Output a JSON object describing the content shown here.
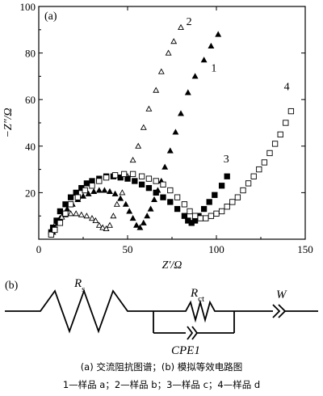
{
  "chart_data": {
    "type": "scatter",
    "panel_label": "(a)",
    "xlabel": "Z′/Ω",
    "ylabel": "−Z″/Ω",
    "xlim": [
      0,
      150
    ],
    "ylim": [
      0,
      100
    ],
    "xticks": [
      0,
      50,
      100,
      150
    ],
    "yticks": [
      20,
      40,
      60,
      80,
      100
    ],
    "grid": false,
    "series": [
      {
        "name": "1",
        "marker": "filled-triangle",
        "points": [
          [
            8,
            3
          ],
          [
            9,
            5
          ],
          [
            10,
            7
          ],
          [
            12,
            9
          ],
          [
            14,
            11
          ],
          [
            16,
            13
          ],
          [
            19,
            15
          ],
          [
            22,
            17
          ],
          [
            25,
            18.5
          ],
          [
            28,
            19.5
          ],
          [
            31,
            20.5
          ],
          [
            34,
            21
          ],
          [
            37,
            21
          ],
          [
            40,
            20.5
          ],
          [
            43,
            19.5
          ],
          [
            46,
            17.5
          ],
          [
            49,
            15
          ],
          [
            51,
            12
          ],
          [
            53,
            9
          ],
          [
            55,
            6
          ],
          [
            57,
            5
          ],
          [
            59,
            7
          ],
          [
            61,
            10
          ],
          [
            63,
            13
          ],
          [
            65,
            17
          ],
          [
            67,
            21
          ],
          [
            69,
            25
          ],
          [
            71,
            31
          ],
          [
            74,
            38
          ],
          [
            77,
            46
          ],
          [
            80,
            54
          ],
          [
            84,
            63
          ],
          [
            88,
            70
          ],
          [
            93,
            77
          ],
          [
            97,
            83
          ],
          [
            101,
            88
          ]
        ],
        "label": {
          "text": "1",
          "x": 97,
          "y": 72
        }
      },
      {
        "name": "2",
        "marker": "open-triangle",
        "points": [
          [
            7,
            2
          ],
          [
            8,
            4
          ],
          [
            9,
            6
          ],
          [
            11,
            8
          ],
          [
            13,
            9.5
          ],
          [
            15,
            10.5
          ],
          [
            18,
            11
          ],
          [
            21,
            11
          ],
          [
            24,
            10.5
          ],
          [
            27,
            10
          ],
          [
            30,
            9
          ],
          [
            32,
            8
          ],
          [
            34,
            6
          ],
          [
            36,
            5
          ],
          [
            38,
            4.5
          ],
          [
            40,
            6
          ],
          [
            42,
            10
          ],
          [
            44,
            15
          ],
          [
            47,
            20
          ],
          [
            50,
            27
          ],
          [
            53,
            34
          ],
          [
            56,
            40
          ],
          [
            59,
            48
          ],
          [
            62,
            56
          ],
          [
            66,
            64
          ],
          [
            69,
            72
          ],
          [
            73,
            80
          ],
          [
            76,
            85
          ],
          [
            80,
            91
          ]
        ],
        "label": {
          "text": "2",
          "x": 83,
          "y": 92
        }
      },
      {
        "name": "3",
        "marker": "filled-square",
        "points": [
          [
            7,
            3
          ],
          [
            8,
            5
          ],
          [
            10,
            8
          ],
          [
            12,
            12
          ],
          [
            15,
            15
          ],
          [
            18,
            18
          ],
          [
            21,
            20
          ],
          [
            24,
            22
          ],
          [
            27,
            24
          ],
          [
            30,
            25
          ],
          [
            34,
            26
          ],
          [
            38,
            27
          ],
          [
            42,
            27
          ],
          [
            46,
            26.5
          ],
          [
            50,
            26
          ],
          [
            54,
            25
          ],
          [
            58,
            23.5
          ],
          [
            62,
            22
          ],
          [
            66,
            20
          ],
          [
            70,
            18
          ],
          [
            74,
            16
          ],
          [
            78,
            13
          ],
          [
            82,
            10
          ],
          [
            84,
            8
          ],
          [
            86,
            7
          ],
          [
            88,
            8
          ],
          [
            90,
            10
          ],
          [
            93,
            13
          ],
          [
            96,
            16
          ],
          [
            99,
            19
          ],
          [
            103,
            23
          ],
          [
            106,
            27
          ]
        ],
        "label": {
          "text": "3",
          "x": 104,
          "y": 33
        }
      },
      {
        "name": "4",
        "marker": "open-square",
        "points": [
          [
            7,
            2
          ],
          [
            9,
            4
          ],
          [
            12,
            7
          ],
          [
            15,
            11
          ],
          [
            18,
            15
          ],
          [
            22,
            18
          ],
          [
            26,
            21
          ],
          [
            30,
            23
          ],
          [
            34,
            25
          ],
          [
            38,
            26.5
          ],
          [
            43,
            27.5
          ],
          [
            48,
            28
          ],
          [
            53,
            28
          ],
          [
            58,
            27
          ],
          [
            62,
            26
          ],
          [
            66,
            25
          ],
          [
            70,
            23.5
          ],
          [
            74,
            21
          ],
          [
            78,
            18
          ],
          [
            82,
            15
          ],
          [
            85,
            12
          ],
          [
            88,
            10
          ],
          [
            91,
            9
          ],
          [
            94,
            9
          ],
          [
            97,
            10
          ],
          [
            100,
            11
          ],
          [
            103,
            12
          ],
          [
            106,
            14
          ],
          [
            109,
            16
          ],
          [
            112,
            18
          ],
          [
            115,
            21
          ],
          [
            118,
            24
          ],
          [
            121,
            27
          ],
          [
            124,
            30
          ],
          [
            127,
            33
          ],
          [
            130,
            37
          ],
          [
            133,
            41
          ],
          [
            136,
            45
          ],
          [
            139,
            50
          ],
          [
            142,
            55
          ]
        ],
        "label": {
          "text": "4",
          "x": 138,
          "y": 64
        }
      }
    ]
  },
  "diagram": {
    "panel_label": "(b)",
    "rs_main": "R",
    "rs_sub": "s",
    "rct_main": "R",
    "rct_sub": "ct",
    "w_label": "W",
    "cpe_label": "CPE1"
  },
  "caption": {
    "line1": "(a) 交流阻抗图谱；(b) 模拟等效电路图",
    "line2": "1—样品 a；2—样品 b；3—样品 c；4—样品 d"
  }
}
